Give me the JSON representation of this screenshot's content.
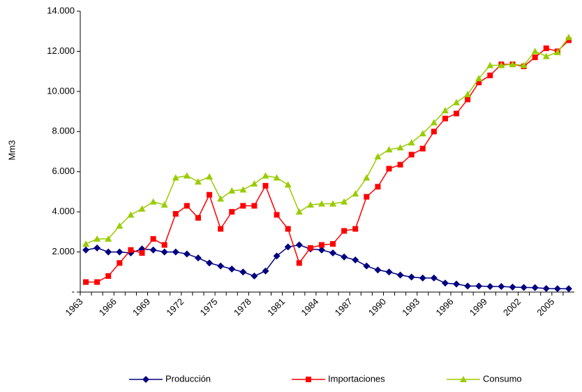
{
  "chart_data": {
    "type": "line",
    "y_label": "Mm3",
    "categories": [
      "1963",
      null,
      null,
      "1966",
      null,
      null,
      "1969",
      null,
      null,
      "1972",
      null,
      null,
      "1975",
      null,
      null,
      "1978",
      null,
      null,
      "1981",
      null,
      null,
      "1984",
      null,
      null,
      "1987",
      null,
      null,
      "1990",
      null,
      null,
      "1993",
      null,
      null,
      "1996",
      null,
      null,
      "1999",
      null,
      null,
      "2002",
      null,
      null,
      "2005",
      null
    ],
    "series": [
      {
        "name": "Producción",
        "color": "#000080",
        "marker": "diamond",
        "values": [
          2100,
          2200,
          2000,
          2000,
          1950,
          2150,
          2100,
          2000,
          2000,
          1900,
          1700,
          1450,
          1300,
          1150,
          1000,
          800,
          1050,
          1800,
          2250,
          2350,
          2150,
          2100,
          1950,
          1750,
          1600,
          1300,
          1100,
          1000,
          850,
          750,
          700,
          700,
          450,
          400,
          300,
          300,
          280,
          280,
          250,
          230,
          220,
          180,
          170,
          170
        ]
      },
      {
        "name": "Importaciones",
        "color": "#ff0000",
        "marker": "square",
        "values": [
          500,
          500,
          800,
          1450,
          2100,
          1950,
          2650,
          2350,
          3900,
          4300,
          3700,
          4850,
          3150,
          4000,
          4300,
          4300,
          5300,
          3850,
          3150,
          1450,
          2200,
          2350,
          2400,
          3050,
          3150,
          4750,
          5250,
          6150,
          6350,
          6850,
          7150,
          8000,
          8650,
          8900,
          9600,
          10450,
          10800,
          11350,
          11350,
          11250,
          11700,
          12150,
          12000,
          12550
        ]
      },
      {
        "name": "Consumo",
        "color": "#99cc00",
        "marker": "triangle",
        "values": [
          2400,
          2650,
          2650,
          3300,
          3850,
          4150,
          4500,
          4350,
          5700,
          5800,
          5500,
          5750,
          4650,
          5050,
          5100,
          5400,
          5800,
          5700,
          5350,
          4000,
          4350,
          4400,
          4400,
          4500,
          4900,
          5700,
          6750,
          7100,
          7200,
          7450,
          7900,
          8450,
          9050,
          9450,
          9850,
          10650,
          11300,
          11300,
          11350,
          11300,
          12000,
          11750,
          11950,
          12700
        ]
      }
    ],
    "ylim": [
      0,
      14000
    ],
    "yticks": [
      {
        "value": 0,
        "label": "-"
      },
      {
        "value": 2000,
        "label": "2.000"
      },
      {
        "value": 4000,
        "label": "4.000"
      },
      {
        "value": 6000,
        "label": "6.000"
      },
      {
        "value": 8000,
        "label": "8.000"
      },
      {
        "value": 10000,
        "label": "10.000"
      },
      {
        "value": 12000,
        "label": "12.000"
      },
      {
        "value": 14000,
        "label": "14.000"
      }
    ],
    "grid": false,
    "legend": "bottom"
  }
}
